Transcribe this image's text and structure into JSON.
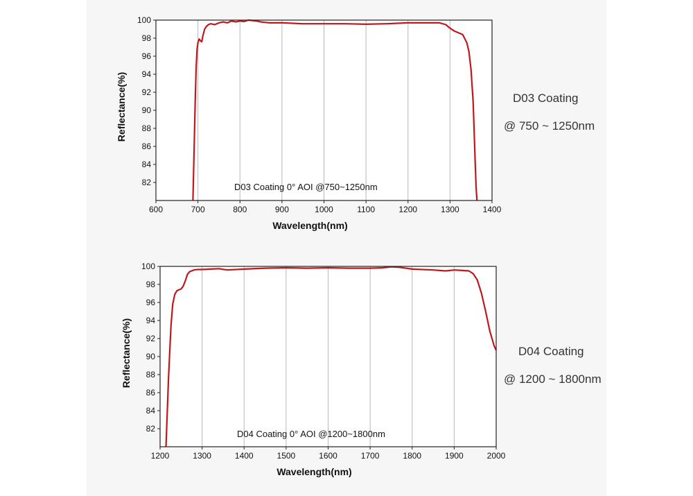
{
  "colors": {
    "curve": "#c0161c",
    "grid": "#b8b8b8",
    "frame": "#222222",
    "plot_bg": "#ffffff",
    "panel_bg": "#f6f6f6"
  },
  "side_labels": {
    "d03": {
      "name": "D03 Coating",
      "range": "@ 750 ~ 1250nm"
    },
    "d04": {
      "name": "D04 Coating",
      "range": "@ 1200 ~ 1800nm"
    }
  },
  "chart_data": [
    {
      "type": "line",
      "title": "",
      "annotation": "D03 Coating  0°  AOI @750~1250nm",
      "xlabel": "Wavelength(nm)",
      "ylabel": "Reflectance(%)",
      "xlim": [
        600,
        1400
      ],
      "ylim": [
        80,
        100
      ],
      "xticks": [
        600,
        700,
        800,
        900,
        1000,
        1100,
        1200,
        1300,
        1400
      ],
      "yticks": [
        82,
        84,
        86,
        88,
        90,
        92,
        94,
        96,
        98,
        100
      ],
      "grid": "vertical",
      "series": [
        {
          "name": "D03 Coating",
          "x": [
            688,
            690,
            692,
            694,
            696,
            698,
            700,
            703,
            706,
            709,
            712,
            716,
            720,
            725,
            730,
            740,
            750,
            760,
            770,
            780,
            790,
            800,
            810,
            820,
            830,
            840,
            850,
            870,
            900,
            950,
            1000,
            1050,
            1100,
            1150,
            1200,
            1250,
            1275,
            1290,
            1300,
            1310,
            1320,
            1330,
            1340,
            1345,
            1350,
            1355,
            1358,
            1360,
            1362,
            1364
          ],
          "values": [
            80,
            84,
            88,
            92,
            95,
            96.8,
            97.5,
            97.9,
            97.7,
            97.6,
            98.3,
            99,
            99.3,
            99.5,
            99.6,
            99.5,
            99.7,
            99.8,
            99.7,
            99.9,
            99.8,
            99.9,
            99.85,
            100,
            99.95,
            99.9,
            99.8,
            99.7,
            99.7,
            99.6,
            99.6,
            99.6,
            99.55,
            99.6,
            99.7,
            99.7,
            99.7,
            99.5,
            99.1,
            98.8,
            98.6,
            98.4,
            97.5,
            96.5,
            94.5,
            91,
            87,
            84,
            81.5,
            80
          ]
        }
      ]
    },
    {
      "type": "line",
      "title": "",
      "annotation": "D04 Coating  0°  AOI @1200~1800nm",
      "xlabel": "Wavelength(nm)",
      "ylabel": "Reflectance(%)",
      "xlim": [
        1200,
        2000
      ],
      "ylim": [
        80,
        100
      ],
      "xticks": [
        1200,
        1300,
        1400,
        1500,
        1600,
        1700,
        1800,
        1900,
        2000
      ],
      "yticks": [
        82,
        84,
        86,
        88,
        90,
        92,
        94,
        96,
        98,
        100
      ],
      "grid": "vertical",
      "series": [
        {
          "name": "D04 Coating",
          "x": [
            1214,
            1216,
            1218,
            1220,
            1223,
            1226,
            1230,
            1235,
            1240,
            1245,
            1250,
            1255,
            1260,
            1265,
            1270,
            1280,
            1290,
            1300,
            1320,
            1340,
            1360,
            1400,
            1450,
            1500,
            1550,
            1600,
            1650,
            1700,
            1730,
            1750,
            1770,
            1800,
            1850,
            1880,
            1900,
            1920,
            1935,
            1945,
            1955,
            1965,
            1975,
            1985,
            1995,
            2000
          ],
          "values": [
            80,
            82.5,
            85,
            87.5,
            90.5,
            93.5,
            95.8,
            96.9,
            97.3,
            97.4,
            97.5,
            97.8,
            98.4,
            99.1,
            99.4,
            99.6,
            99.65,
            99.65,
            99.7,
            99.75,
            99.6,
            99.7,
            99.8,
            99.85,
            99.8,
            99.85,
            99.8,
            99.8,
            99.85,
            99.95,
            99.9,
            99.7,
            99.6,
            99.5,
            99.6,
            99.55,
            99.5,
            99.2,
            98.5,
            97,
            95,
            92.8,
            91.2,
            90.7
          ]
        }
      ]
    }
  ]
}
